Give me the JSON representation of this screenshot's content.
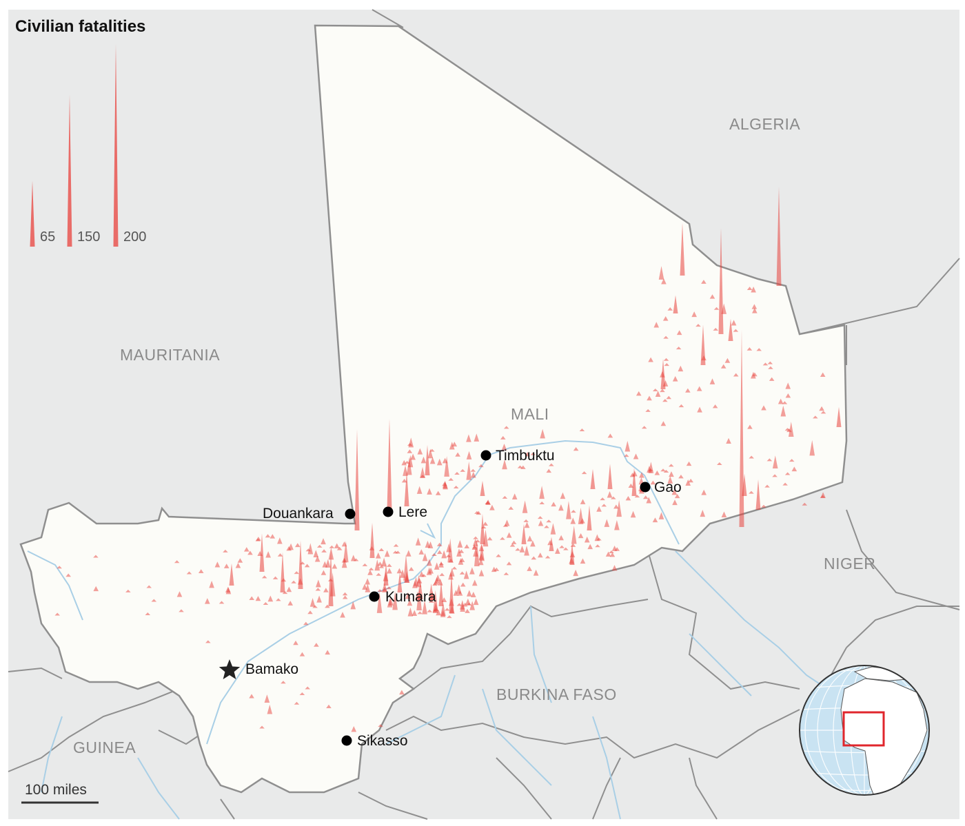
{
  "title": "Civilian fatalities",
  "legend": {
    "items": [
      {
        "label": "65",
        "value": 65
      },
      {
        "label": "150",
        "value": 150
      },
      {
        "label": "200",
        "value": 200
      }
    ]
  },
  "countries": {
    "mali": "MALI",
    "algeria": "ALGERIA",
    "mauritania": "MAURITANIA",
    "niger": "NIGER",
    "burkina_faso": "BURKINA FASO",
    "guinea": "GUINEA"
  },
  "cities": {
    "timbuktu": "Timbuktu",
    "gao": "Gao",
    "douankara": "Douankara",
    "lere": "Lere",
    "kumara": "Kumara",
    "bamako": "Bamako",
    "sikasso": "Sikasso"
  },
  "scale_bar": {
    "label": "100 miles"
  },
  "colors": {
    "spike": "#e8413c",
    "mali_fill": "#fcfcf8",
    "background": "#e9eaea",
    "border": "#8f8f8f",
    "river": "#a9cfe6",
    "globe_ocean": "#c9e3f2",
    "globe_land": "#ffffff",
    "inset_box": "#e0262c"
  },
  "icons": {
    "capital": "star-icon",
    "city": "dot-icon"
  }
}
